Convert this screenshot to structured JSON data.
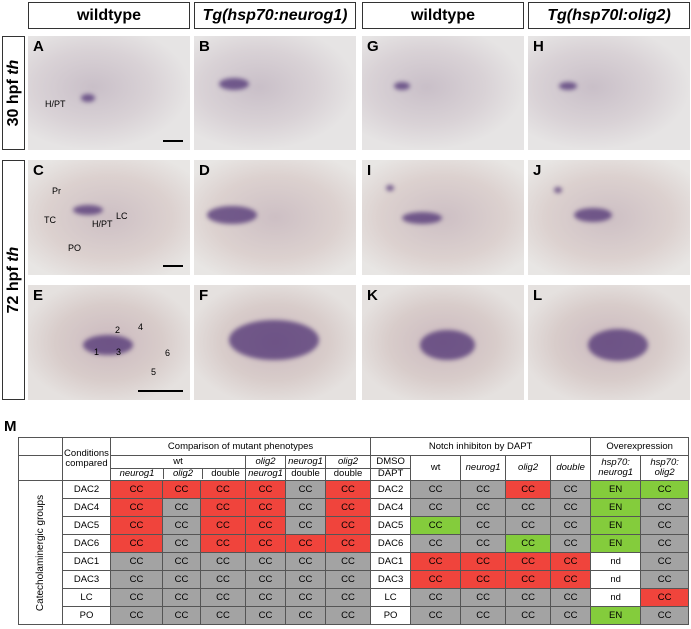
{
  "figure": {
    "column_headers": [
      "wildtype",
      "Tg(hsp70:neurog1)",
      "wildtype",
      "Tg(hsp70l:olig2)"
    ],
    "row_labels": [
      {
        "stage": "30 hpf",
        "gene": "th"
      },
      {
        "stage": "72 hpf",
        "gene": "th"
      }
    ],
    "panels": [
      [
        "A",
        "B",
        "G",
        "H"
      ],
      [
        "C",
        "D",
        "I",
        "J"
      ],
      [
        "E",
        "F",
        "K",
        "L"
      ]
    ],
    "annotations": {
      "A": [
        "H/PT"
      ],
      "C": [
        "Pr",
        "TC",
        "H/PT",
        "LC",
        "PO"
      ],
      "E": [
        "1",
        "2",
        "3",
        "4",
        "5",
        "6"
      ]
    }
  },
  "table": {
    "label": "M",
    "conditions_header": [
      "Conditions",
      "compared"
    ],
    "groups": [
      "Comparison of mutant phenotypes",
      "Notch inhibiton by DAPT",
      "Overexpression"
    ],
    "mutant_top": [
      "wt",
      "olig2",
      "neurog1",
      "olig2"
    ],
    "mutant_bottom": [
      "neurog1",
      "olig2",
      "double",
      "neurog1",
      "double",
      "double"
    ],
    "dapt_label": [
      "DMSO",
      "DAPT"
    ],
    "dapt_columns": [
      "wt",
      "neurog1",
      "olig2",
      "double"
    ],
    "overexpression_columns": [
      [
        "hsp70:",
        "neurog1"
      ],
      [
        "hsp70:",
        "olig2"
      ]
    ],
    "row_group": "Catecholaminergic groups",
    "rows": [
      {
        "name": "DAC2",
        "mutant": [
          {
            "text": "CC",
            "color": "red"
          },
          {
            "text": "CC",
            "color": "red"
          },
          {
            "text": "CC",
            "color": "red"
          },
          {
            "text": "CC",
            "color": "red"
          },
          {
            "text": "CC",
            "color": "gray"
          },
          {
            "text": "CC",
            "color": "red"
          }
        ],
        "dapt": [
          {
            "text": "CC",
            "color": "gray"
          },
          {
            "text": "CC",
            "color": "gray"
          },
          {
            "text": "CC",
            "color": "red"
          },
          {
            "text": "CC",
            "color": "gray"
          }
        ],
        "overexpression": [
          {
            "text": "EN",
            "color": "green"
          },
          {
            "text": "CC",
            "color": "green"
          }
        ]
      },
      {
        "name": "DAC4",
        "mutant": [
          {
            "text": "CC",
            "color": "red"
          },
          {
            "text": "CC",
            "color": "gray"
          },
          {
            "text": "CC",
            "color": "red"
          },
          {
            "text": "CC",
            "color": "red"
          },
          {
            "text": "CC",
            "color": "gray"
          },
          {
            "text": "CC",
            "color": "red"
          }
        ],
        "dapt": [
          {
            "text": "CC",
            "color": "gray"
          },
          {
            "text": "CC",
            "color": "gray"
          },
          {
            "text": "CC",
            "color": "gray"
          },
          {
            "text": "CC",
            "color": "gray"
          }
        ],
        "overexpression": [
          {
            "text": "EN",
            "color": "green"
          },
          {
            "text": "CC",
            "color": "gray"
          }
        ]
      },
      {
        "name": "DAC5",
        "mutant": [
          {
            "text": "CC",
            "color": "red"
          },
          {
            "text": "CC",
            "color": "gray"
          },
          {
            "text": "CC",
            "color": "red"
          },
          {
            "text": "CC",
            "color": "red"
          },
          {
            "text": "CC",
            "color": "gray"
          },
          {
            "text": "CC",
            "color": "red"
          }
        ],
        "dapt": [
          {
            "text": "CC",
            "color": "green"
          },
          {
            "text": "CC",
            "color": "gray"
          },
          {
            "text": "CC",
            "color": "gray"
          },
          {
            "text": "CC",
            "color": "gray"
          }
        ],
        "overexpression": [
          {
            "text": "EN",
            "color": "green"
          },
          {
            "text": "CC",
            "color": "gray"
          }
        ]
      },
      {
        "name": "DAC6",
        "mutant": [
          {
            "text": "CC",
            "color": "red"
          },
          {
            "text": "CC",
            "color": "gray"
          },
          {
            "text": "CC",
            "color": "red"
          },
          {
            "text": "CC",
            "color": "red"
          },
          {
            "text": "CC",
            "color": "red"
          },
          {
            "text": "CC",
            "color": "red"
          }
        ],
        "dapt": [
          {
            "text": "CC",
            "color": "gray"
          },
          {
            "text": "CC",
            "color": "gray"
          },
          {
            "text": "CC",
            "color": "green"
          },
          {
            "text": "CC",
            "color": "gray"
          }
        ],
        "overexpression": [
          {
            "text": "EN",
            "color": "green"
          },
          {
            "text": "CC",
            "color": "gray"
          }
        ]
      },
      {
        "name": "DAC1",
        "mutant": [
          {
            "text": "CC",
            "color": "gray"
          },
          {
            "text": "CC",
            "color": "gray"
          },
          {
            "text": "CC",
            "color": "gray"
          },
          {
            "text": "CC",
            "color": "gray"
          },
          {
            "text": "CC",
            "color": "gray"
          },
          {
            "text": "CC",
            "color": "gray"
          }
        ],
        "dapt": [
          {
            "text": "CC",
            "color": "red"
          },
          {
            "text": "CC",
            "color": "red"
          },
          {
            "text": "CC",
            "color": "red"
          },
          {
            "text": "CC",
            "color": "red"
          }
        ],
        "overexpression": [
          {
            "text": "nd",
            "color": "white"
          },
          {
            "text": "CC",
            "color": "gray"
          }
        ]
      },
      {
        "name": "DAC3",
        "mutant": [
          {
            "text": "CC",
            "color": "gray"
          },
          {
            "text": "CC",
            "color": "gray"
          },
          {
            "text": "CC",
            "color": "gray"
          },
          {
            "text": "CC",
            "color": "gray"
          },
          {
            "text": "CC",
            "color": "gray"
          },
          {
            "text": "CC",
            "color": "gray"
          }
        ],
        "dapt": [
          {
            "text": "CC",
            "color": "red"
          },
          {
            "text": "CC",
            "color": "red"
          },
          {
            "text": "CC",
            "color": "red"
          },
          {
            "text": "CC",
            "color": "red"
          }
        ],
        "overexpression": [
          {
            "text": "nd",
            "color": "white"
          },
          {
            "text": "CC",
            "color": "gray"
          }
        ]
      },
      {
        "name": "LC",
        "mutant": [
          {
            "text": "CC",
            "color": "gray"
          },
          {
            "text": "CC",
            "color": "gray"
          },
          {
            "text": "CC",
            "color": "gray"
          },
          {
            "text": "CC",
            "color": "gray"
          },
          {
            "text": "CC",
            "color": "gray"
          },
          {
            "text": "CC",
            "color": "gray"
          }
        ],
        "dapt": [
          {
            "text": "CC",
            "color": "gray"
          },
          {
            "text": "CC",
            "color": "gray"
          },
          {
            "text": "CC",
            "color": "gray"
          },
          {
            "text": "CC",
            "color": "gray"
          }
        ],
        "overexpression": [
          {
            "text": "nd",
            "color": "white"
          },
          {
            "text": "CC",
            "color": "red"
          }
        ]
      },
      {
        "name": "PO",
        "mutant": [
          {
            "text": "CC",
            "color": "gray"
          },
          {
            "text": "CC",
            "color": "gray"
          },
          {
            "text": "CC",
            "color": "gray"
          },
          {
            "text": "CC",
            "color": "gray"
          },
          {
            "text": "CC",
            "color": "gray"
          },
          {
            "text": "CC",
            "color": "gray"
          }
        ],
        "dapt": [
          {
            "text": "CC",
            "color": "gray"
          },
          {
            "text": "CC",
            "color": "gray"
          },
          {
            "text": "CC",
            "color": "gray"
          },
          {
            "text": "CC",
            "color": "gray"
          }
        ],
        "overexpression": [
          {
            "text": "EN",
            "color": "green"
          },
          {
            "text": "CC",
            "color": "gray"
          }
        ]
      }
    ]
  }
}
